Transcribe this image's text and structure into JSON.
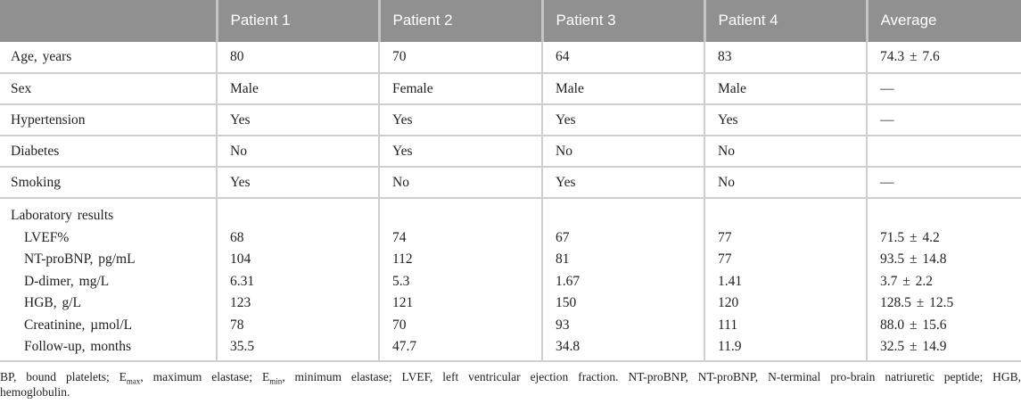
{
  "colors": {
    "header_bg": "#909090",
    "header_text": "#ffffff",
    "header_divider": "#c4c4c4",
    "grid_line": "#cfcfcf",
    "body_text": "#1f1f1f"
  },
  "table": {
    "header": [
      "",
      "Patient 1",
      "Patient 2",
      "Patient 3",
      "Patient 4",
      "Average"
    ],
    "rows": [
      {
        "label": "Age, years",
        "values": [
          "80",
          "70",
          "64",
          "83",
          "74.3 ± 7.6"
        ]
      },
      {
        "label": "Sex",
        "values": [
          "Male",
          "Female",
          "Male",
          "Male",
          "—"
        ]
      },
      {
        "label": "Hypertension",
        "values": [
          "Yes",
          "Yes",
          "Yes",
          "Yes",
          "—"
        ]
      },
      {
        "label": "Diabetes",
        "values": [
          "No",
          "Yes",
          "No",
          "No",
          ""
        ]
      },
      {
        "label": "Smoking",
        "values": [
          "Yes",
          "No",
          "Yes",
          "No",
          "—"
        ]
      }
    ],
    "lab_section": {
      "label": "Laboratory results",
      "rows": [
        {
          "label": "LVEF%",
          "values": [
            "68",
            "74",
            "67",
            "77",
            "71.5 ± 4.2"
          ]
        },
        {
          "label": "NT-proBNP, pg/mL",
          "values": [
            "104",
            "112",
            "81",
            "77",
            "93.5 ± 14.8"
          ]
        },
        {
          "label": "D-dimer, mg/L",
          "values": [
            "6.31",
            "5.3",
            "1.67",
            "1.41",
            "3.7 ± 2.2"
          ]
        },
        {
          "label": "HGB, g/L",
          "values": [
            "123",
            "121",
            "150",
            "120",
            "128.5 ± 12.5"
          ]
        },
        {
          "label": "Creatinine, µmol/L",
          "values": [
            "78",
            "70",
            "93",
            "111",
            "88.0 ± 15.6"
          ]
        },
        {
          "label": "Follow-up, months",
          "values": [
            "35.5",
            "47.7",
            "34.8",
            "11.9",
            "32.5 ± 14.9"
          ]
        }
      ]
    },
    "footnote": {
      "line1_segments": [
        {
          "text": "BP, bound platelets; E"
        },
        {
          "text": "max",
          "sub": true
        },
        {
          "text": ", maximum elastase; E"
        },
        {
          "text": "min",
          "sub": true
        },
        {
          "text": ", minimum elastase; LVEF, left ventricular ejection fraction. NT-proBNP, NT-proBNP, N-terminal pro-brain natriuretic peptide; HGB,"
        }
      ],
      "line2": "hemoglobulin."
    }
  }
}
